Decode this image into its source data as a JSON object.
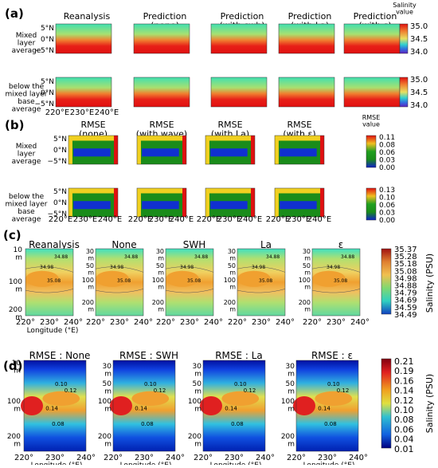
{
  "panels": {
    "a": {
      "letter": "(a)",
      "titles": [
        "Reanalysis",
        "Prediction\n(none)",
        "Prediction\n(with swh)",
        "Prediction\n(with La)",
        "Prediction\n(with ε)"
      ],
      "rows": [
        "Mixed\nlayer\naverage",
        "below the\nmixed layer\nbase\naverage"
      ],
      "lat_ticks": [
        "5°N",
        "0°N",
        "−5°N"
      ],
      "lon_ticks": [
        "220°E",
        "230°E",
        "240°E"
      ],
      "colorbar_title": "Salinity\nvalue",
      "colorbar_ticks": [
        "35.0",
        "34.5",
        "34.0"
      ]
    },
    "b": {
      "letter": "(b)",
      "titles": [
        "RMSE\n(none)",
        "RMSE\n(with wave)",
        "RMSE\n(with La)",
        "RMSE\n(with ε)"
      ],
      "rows": [
        "Mixed\nlayer\naverage",
        "below the\nmixed layer\nbase\naverage"
      ],
      "lat_ticks": [
        "5°N",
        "0°N",
        "−5°N"
      ],
      "lon_ticks": [
        "220°E",
        "230°E",
        "240°E"
      ],
      "colorbar_title": "RMSE\nvalue",
      "colorbar1_ticks": [
        "0.11",
        "0.08",
        "0.06",
        "0.03",
        "0.00"
      ],
      "colorbar2_ticks": [
        "0.13",
        "0.10",
        "0.06",
        "0.03",
        "0.00"
      ]
    },
    "c": {
      "letter": "(c)",
      "titles": [
        "Reanalysis",
        "None",
        "SWH",
        "La",
        "ε"
      ],
      "depth_ticks": [
        "10\nm",
        "100\nm",
        "200\nm"
      ],
      "depth_ticks_right": [
        "30\nm",
        "50\nm",
        "100\nm",
        "200\nm"
      ],
      "lon_ticks": [
        "220°",
        "230°",
        "240°"
      ],
      "xlabel": "Longitude (°E)",
      "contour_labels": [
        "34.98",
        "35.08",
        "34.88"
      ],
      "colorbar_label": "Salinity (PSU)",
      "colorbar_ticks": [
        "35.37",
        "35.28",
        "35.18",
        "35.08",
        "34.98",
        "34.88",
        "34.79",
        "34.69",
        "34.59",
        "34.49"
      ]
    },
    "d": {
      "letter": "(d)",
      "titles": [
        "RMSE : None",
        "RMSE : SWH",
        "RMSE : La",
        "RMSE : ε"
      ],
      "depth_ticks": [
        "10\nm",
        "100\nm",
        "200\nm"
      ],
      "depth_ticks_right": [
        "30\nm",
        "50\nm",
        "100\nm",
        "200\nm"
      ],
      "lon_ticks": [
        "220°",
        "230°",
        "240°"
      ],
      "xlabel": "Longitude (°E)",
      "contour_labels": [
        "0.10",
        "0.12",
        "0.14",
        "0.08"
      ],
      "colorbar_label": "Salinity (PSU)",
      "colorbar_ticks": [
        "0.21",
        "0.19",
        "0.16",
        "0.14",
        "0.12",
        "0.10",
        "0.08",
        "0.06",
        "0.04",
        "0.01"
      ]
    }
  },
  "colors": {
    "salinity_low": "#3b4cc0",
    "salinity_high": "#e8151a",
    "rmse_low": "#1020c8",
    "rmse_mid": "#1a8c1a",
    "rmse_high": "#e61a1a"
  }
}
